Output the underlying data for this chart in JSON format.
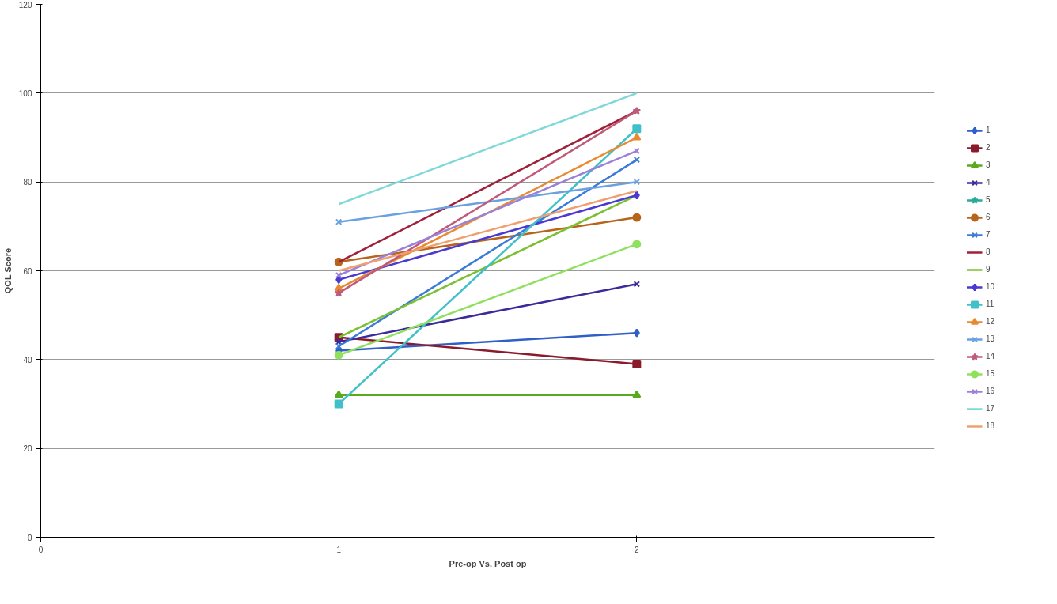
{
  "chart_data": {
    "type": "line",
    "xlabel": "Pre-op Vs. Post op",
    "ylabel": "QOL Score",
    "x": [
      1,
      2
    ],
    "xlim": [
      0,
      3
    ],
    "xticks": [
      0,
      1,
      2
    ],
    "ylim": [
      0,
      120
    ],
    "yticks": [
      0,
      20,
      40,
      60,
      80,
      100,
      120
    ],
    "grid": "y",
    "legend": "right",
    "series": [
      {
        "name": "1",
        "color": "#2f5fc8",
        "marker": "diamond",
        "values": [
          42,
          46
        ]
      },
      {
        "name": "2",
        "color": "#8b1a2b",
        "marker": "square",
        "values": [
          45,
          39
        ]
      },
      {
        "name": "3",
        "color": "#5aaa1e",
        "marker": "triangle",
        "values": [
          32,
          32
        ]
      },
      {
        "name": "4",
        "color": "#3a2a9a",
        "marker": "cross",
        "values": [
          44,
          57
        ]
      },
      {
        "name": "5",
        "color": "#2aa89a",
        "marker": "star",
        "values": [
          null,
          null
        ]
      },
      {
        "name": "6",
        "color": "#b8651c",
        "marker": "circle",
        "values": [
          62,
          72
        ]
      },
      {
        "name": "7",
        "color": "#3a7ad8",
        "marker": "cross",
        "values": [
          43,
          85
        ]
      },
      {
        "name": "8",
        "color": "#a0203a",
        "marker": "none",
        "values": [
          62,
          96
        ]
      },
      {
        "name": "9",
        "color": "#7ac030",
        "marker": "none",
        "values": [
          45,
          77
        ]
      },
      {
        "name": "10",
        "color": "#4a3ad0",
        "marker": "diamond",
        "values": [
          58,
          77
        ]
      },
      {
        "name": "11",
        "color": "#40c0c8",
        "marker": "square",
        "values": [
          30,
          92
        ]
      },
      {
        "name": "12",
        "color": "#e88a30",
        "marker": "triangle",
        "values": [
          56,
          90
        ]
      },
      {
        "name": "13",
        "color": "#6aa0e0",
        "marker": "cross",
        "values": [
          71,
          80
        ]
      },
      {
        "name": "14",
        "color": "#c05a7a",
        "marker": "star",
        "values": [
          55,
          96
        ]
      },
      {
        "name": "15",
        "color": "#90e060",
        "marker": "circle",
        "values": [
          41,
          66
        ]
      },
      {
        "name": "16",
        "color": "#9a80d8",
        "marker": "cross",
        "values": [
          59,
          87
        ]
      },
      {
        "name": "17",
        "color": "#80d8d8",
        "marker": "none",
        "values": [
          75,
          100
        ]
      },
      {
        "name": "18",
        "color": "#f0a070",
        "marker": "none",
        "values": [
          60,
          78
        ]
      }
    ]
  }
}
